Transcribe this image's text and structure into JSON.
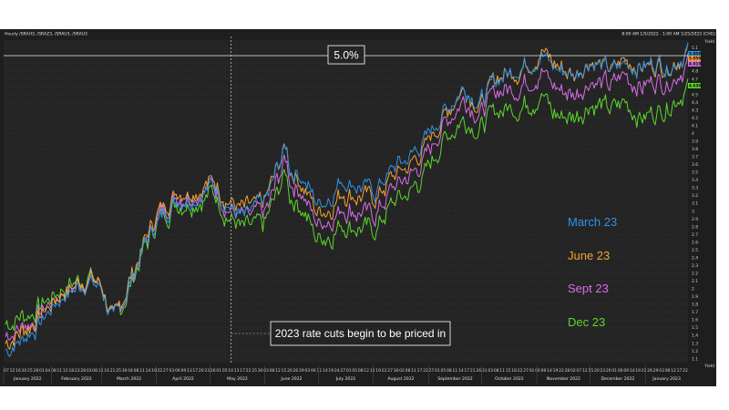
{
  "header": {
    "title": "Hourly /SRAH3, /SRAZ3, /SRAU3, /SRAU3",
    "range": "8:00 AM 1/5/2022 - 1:00 AM 1/25/2023 (CHG)"
  },
  "chart_data": {
    "type": "line",
    "title": "",
    "xlabel": "",
    "ylabel": "Yield",
    "corner_label": "Yield",
    "ylim": [
      1.05,
      5.2
    ],
    "grid": true,
    "legend_position": "right",
    "y_ticks": [
      "1.1",
      "1.2",
      "1.3",
      "1.4",
      "1.5",
      "1.6",
      "1.7",
      "1.8",
      "1.9",
      "2",
      "2.1",
      "2.2",
      "2.3",
      "2.4",
      "2.5",
      "2.6",
      "2.7",
      "2.8",
      "2.9",
      "3",
      "3.1",
      "3.2",
      "3.3",
      "3.4",
      "3.5",
      "3.6",
      "3.7",
      "3.8",
      "3.9",
      "4",
      "4.1",
      "4.2",
      "4.3",
      "4.4",
      "4.5",
      "4.6",
      "4.7",
      "4.8",
      "4.9",
      "5",
      "5.1"
    ],
    "x_day_labels": [
      "07",
      "12",
      "16",
      "20",
      "25",
      "28",
      "01",
      "04",
      "08",
      "11",
      "15",
      "18",
      "23",
      "28",
      "03",
      "08",
      "11",
      "16",
      "21",
      "25",
      "30",
      "04",
      "08",
      "11",
      "14",
      "19",
      "22",
      "27",
      "03",
      "06",
      "09",
      "13",
      "17",
      "20",
      "23",
      "26",
      "01",
      "05",
      "10",
      "13",
      "17",
      "22",
      "25",
      "30",
      "03",
      "08",
      "12",
      "15",
      "20",
      "26",
      "29",
      "03",
      "06",
      "11",
      "14",
      "19",
      "24",
      "27",
      "01",
      "05",
      "08",
      "12",
      "15",
      "19",
      "22",
      "27",
      "30",
      "02",
      "08",
      "11",
      "17",
      "22",
      "27",
      "01",
      "05",
      "08",
      "11",
      "14",
      "17",
      "21",
      "26",
      "31",
      "03",
      "08",
      "11",
      "15",
      "18",
      "22",
      "27",
      "01",
      "06",
      "09",
      "14",
      "19",
      "22",
      "28",
      "02",
      "07",
      "12",
      "15",
      "20",
      "23",
      "26",
      "01",
      "06",
      "09",
      "14",
      "19",
      "22",
      "26",
      "29",
      "03",
      "08",
      "12",
      "17",
      "22"
    ],
    "months": [
      {
        "label": "January 2022",
        "start": "2022-01-05"
      },
      {
        "label": "February 2022",
        "start": "2022-02-01"
      },
      {
        "label": "March 2022",
        "start": "2022-03-01"
      },
      {
        "label": "April 2022",
        "start": "2022-04-01"
      },
      {
        "label": "May 2022",
        "start": "2022-05-01"
      },
      {
        "label": "June 2022",
        "start": "2022-06-01"
      },
      {
        "label": "July 2022",
        "start": "2022-07-01"
      },
      {
        "label": "August 2022",
        "start": "2022-08-01"
      },
      {
        "label": "September 2022",
        "start": "2022-09-01"
      },
      {
        "label": "October 2022",
        "start": "2022-10-01"
      },
      {
        "label": "November 2022",
        "start": "2022-11-01"
      },
      {
        "label": "December 2022",
        "start": "2022-12-01"
      },
      {
        "label": "January 2023",
        "start": "2023-01-01",
        "end": "2023-01-25"
      }
    ],
    "x": [
      "2022-01-06",
      "2022-01-21",
      "2022-02-07",
      "2022-02-22",
      "2022-03-01",
      "2022-03-08",
      "2022-03-16",
      "2022-03-25",
      "2022-04-01",
      "2022-04-12",
      "2022-04-25",
      "2022-05-03",
      "2022-05-11",
      "2022-05-20",
      "2022-05-31",
      "2022-06-03",
      "2022-06-13",
      "2022-06-15",
      "2022-06-22",
      "2022-06-30",
      "2022-07-08",
      "2022-07-14",
      "2022-07-22",
      "2022-08-02",
      "2022-08-12",
      "2022-08-22",
      "2022-08-31",
      "2022-09-09",
      "2022-09-21",
      "2022-09-30",
      "2022-10-10",
      "2022-10-21",
      "2022-11-01",
      "2022-11-03",
      "2022-11-10",
      "2022-11-22",
      "2022-12-01",
      "2022-12-13",
      "2022-12-20",
      "2022-12-30",
      "2023-01-09",
      "2023-01-13",
      "2023-01-25"
    ],
    "series": [
      {
        "name": "March 23",
        "color": "#2f93e8",
        "last_value": "5.050",
        "values": [
          1.2,
          1.45,
          1.9,
          2.1,
          2.0,
          1.55,
          2.0,
          2.55,
          2.85,
          3.15,
          3.2,
          3.35,
          3.1,
          2.9,
          3.1,
          3.2,
          3.85,
          3.55,
          3.45,
          3.1,
          3.2,
          3.4,
          3.35,
          3.25,
          3.55,
          3.7,
          3.95,
          4.25,
          4.6,
          4.4,
          4.7,
          4.85,
          4.95,
          5.05,
          4.85,
          4.75,
          4.95,
          4.8,
          4.9,
          4.85,
          4.95,
          4.85,
          5.05
        ]
      },
      {
        "name": "June 23",
        "color": "#f5a232",
        "last_value": "5.050",
        "values": [
          1.3,
          1.55,
          1.95,
          2.15,
          2.05,
          1.55,
          2.05,
          2.6,
          2.95,
          3.25,
          3.3,
          3.4,
          3.15,
          3.0,
          3.1,
          3.25,
          3.85,
          3.55,
          3.35,
          3.0,
          3.05,
          3.25,
          3.2,
          3.15,
          3.45,
          3.6,
          3.85,
          4.2,
          4.6,
          4.35,
          4.75,
          4.8,
          5.0,
          5.1,
          4.9,
          4.75,
          4.95,
          4.8,
          4.95,
          4.85,
          4.9,
          4.85,
          5.05
        ]
      },
      {
        "name": "Sept 23",
        "color": "#d76ee6",
        "last_value": "4.910",
        "values": [
          1.4,
          1.6,
          1.95,
          2.15,
          2.05,
          1.55,
          2.0,
          2.55,
          2.9,
          3.2,
          3.25,
          3.35,
          3.05,
          2.9,
          2.95,
          3.05,
          3.7,
          3.4,
          3.25,
          2.85,
          2.9,
          3.05,
          3.0,
          2.95,
          3.3,
          3.45,
          3.7,
          4.1,
          4.45,
          4.25,
          4.55,
          4.6,
          4.75,
          4.85,
          4.6,
          4.5,
          4.7,
          4.6,
          4.75,
          4.6,
          4.7,
          4.65,
          4.9
        ]
      },
      {
        "name": "Dec 23",
        "color": "#5dd62c",
        "last_value": "4.630",
        "values": [
          1.55,
          1.7,
          2.0,
          2.2,
          2.05,
          1.55,
          1.95,
          2.5,
          2.85,
          3.1,
          3.15,
          3.25,
          2.95,
          2.75,
          2.8,
          2.95,
          3.5,
          3.2,
          3.05,
          2.65,
          2.7,
          2.85,
          2.8,
          2.75,
          3.1,
          3.25,
          3.5,
          3.9,
          4.2,
          4.05,
          4.3,
          4.35,
          4.45,
          4.55,
          4.25,
          4.2,
          4.4,
          4.3,
          4.4,
          4.2,
          4.3,
          4.35,
          4.6
        ]
      }
    ],
    "annotations": [
      {
        "text": "5.0%",
        "type": "horizontal-line",
        "y": 5.0
      },
      {
        "text": "2023 rate cuts begin to be priced in",
        "type": "vertical-line",
        "x": "2022-05-13"
      }
    ]
  }
}
